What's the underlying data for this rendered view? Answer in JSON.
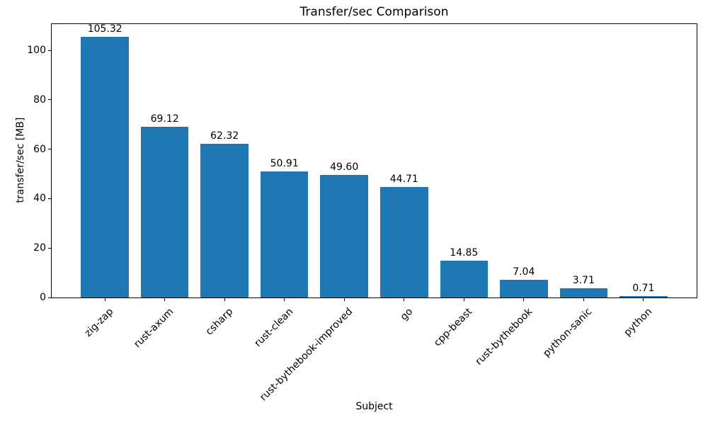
{
  "chart_data": {
    "type": "bar",
    "title": "Transfer/sec Comparison",
    "xlabel": "Subject",
    "ylabel": "transfer/sec [MB]",
    "categories": [
      "zig-zap",
      "rust-axum",
      "csharp",
      "rust-clean",
      "rust-bythebook-improved",
      "go",
      "cpp-beast",
      "rust-bythebook",
      "python-sanic",
      "python"
    ],
    "values": [
      105.32,
      69.12,
      62.32,
      50.91,
      49.6,
      44.71,
      14.85,
      7.04,
      3.71,
      0.71
    ],
    "bar_labels": [
      "105.32",
      "69.12",
      "62.32",
      "50.91",
      "49.60",
      "44.71",
      "14.85",
      "7.04",
      "3.71",
      "0.71"
    ],
    "yticks": [
      0,
      20,
      40,
      60,
      80,
      100
    ],
    "ylim": [
      0,
      110.6
    ],
    "bar_color": "#1f77b4",
    "bar_width": 0.8,
    "x_tick_rotation": 45,
    "grid": false,
    "legend": null,
    "background_color": "#ffffff",
    "spine_color": "#000000"
  }
}
